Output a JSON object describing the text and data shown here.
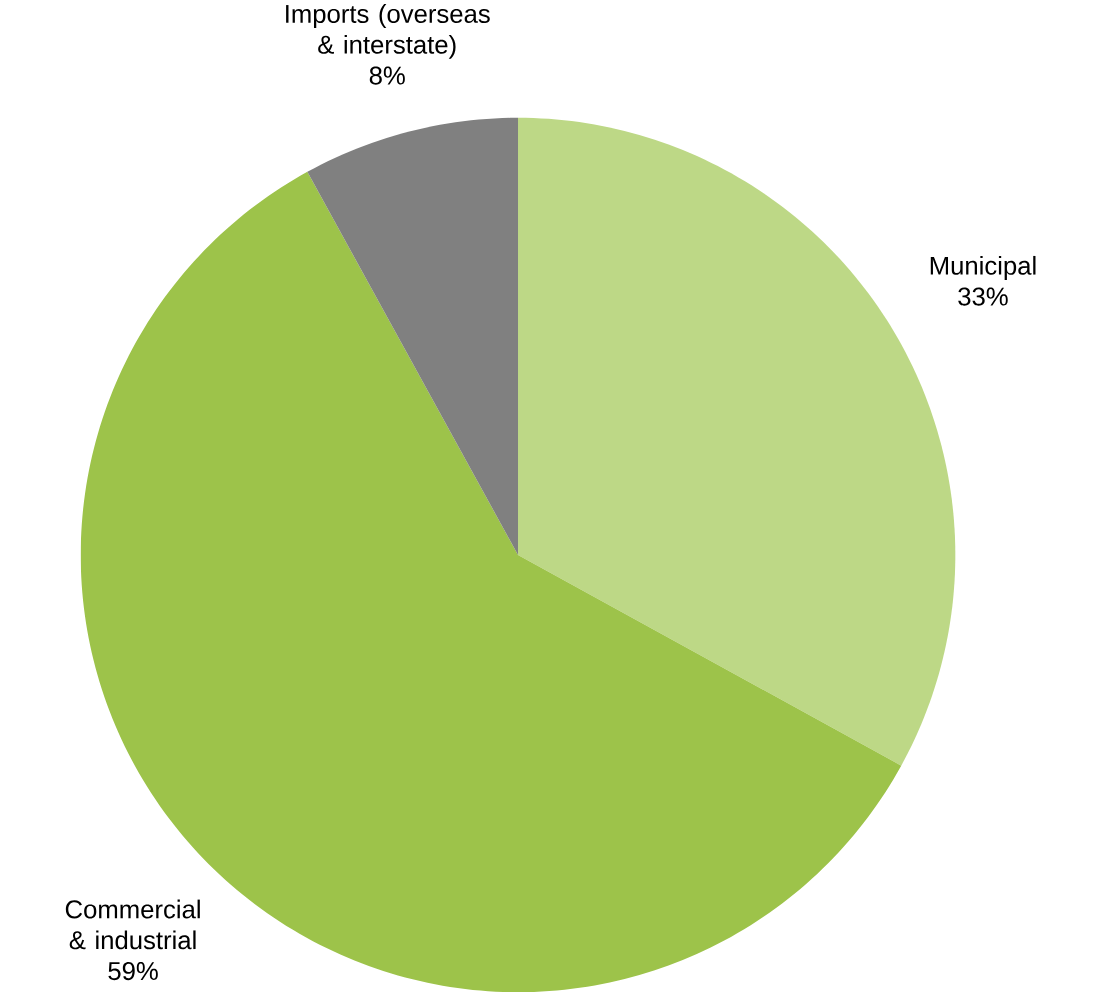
{
  "chart_data": {
    "type": "pie",
    "categories": [
      "Municipal",
      "Commercial & industrial",
      "Imports (overseas & interstate)"
    ],
    "values": [
      33,
      59,
      8
    ],
    "colors": [
      "#bdd886",
      "#9dc34a",
      "#808080"
    ],
    "value_labels": [
      "33%",
      "59%",
      "8%"
    ]
  }
}
